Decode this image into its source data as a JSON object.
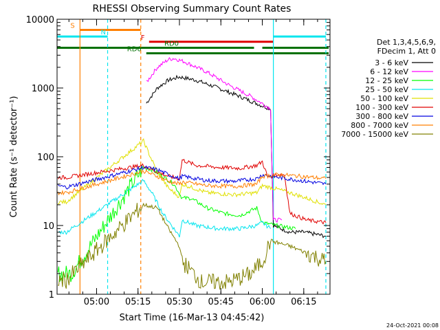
{
  "chart_data": {
    "type": "line",
    "title": "RHESSI Observing Summary Count Rates",
    "xlabel": "Start Time (16-Mar-13 04:45:42)",
    "ylabel": "Count Rate (s⁻¹ detector⁻¹)",
    "y_scale": "log",
    "ylim": [
      1,
      10000
    ],
    "xlim": [
      "04:45:42",
      "06:24:30"
    ],
    "y_ticks": [
      "1",
      "10",
      "100",
      "1000",
      "10000"
    ],
    "x_ticks": [
      "05:00",
      "05:15",
      "05:30",
      "05:45",
      "06:00",
      "06:15"
    ],
    "legend_header": [
      "Det 1,3,4,5,6,9,",
      "FDecim 1, Att 0"
    ],
    "legend_position": "right",
    "footer_date": "24-Oct-2021 00:08",
    "flags": [
      {
        "label": "S",
        "color": "#ff7f00",
        "y": 7000,
        "segments": [
          [
            "04:54:00",
            "05:16:00"
          ]
        ]
      },
      {
        "label": "N",
        "color": "#00e5ee",
        "y": 5600,
        "segments": [
          [
            "04:45:42",
            "05:04:00"
          ],
          [
            "06:04:00",
            "06:23:00"
          ]
        ]
      },
      {
        "label": "F",
        "color": "#e00000",
        "y": 4700,
        "segments": [
          [
            "05:19:00",
            "06:04:00"
          ]
        ]
      },
      {
        "label": "RD0",
        "color": "#007000",
        "y": 3850,
        "segments": [
          [
            "04:45:42",
            "05:31:00"
          ],
          [
            "05:31:00",
            "05:57:00"
          ],
          [
            "06:00:00",
            "06:24:00"
          ]
        ]
      },
      {
        "label": "RD6",
        "color": "#007000",
        "y": 3200,
        "segments": [
          [
            "05:18:00",
            "05:31:00"
          ],
          [
            "05:31:00",
            "06:24:00"
          ]
        ]
      }
    ],
    "vlines": [
      {
        "time": "04:54:00",
        "color": "#ff7f00",
        "style": "solid"
      },
      {
        "time": "05:04:00",
        "color": "#00e5ee",
        "style": "dashed"
      },
      {
        "time": "05:16:00",
        "color": "#ff7f00",
        "style": "dashed"
      },
      {
        "time": "06:04:00",
        "color": "#00e5ee",
        "style": "solid"
      },
      {
        "time": "06:23:00",
        "color": "#00e5ee",
        "style": "dashed"
      }
    ],
    "series": [
      {
        "name": "3 - 6 keV",
        "color": "#000000",
        "points": [
          [
            "05:18",
            600
          ],
          [
            "05:22",
            1000
          ],
          [
            "05:26",
            1300
          ],
          [
            "05:30",
            1450
          ],
          [
            "05:36",
            1300
          ],
          [
            "05:44",
            1000
          ],
          [
            "05:52",
            750
          ],
          [
            "06:00",
            550
          ],
          [
            "06:03",
            500
          ],
          [
            "06:04",
            10
          ],
          [
            "06:10",
            8
          ],
          [
            "06:15",
            8
          ],
          [
            "06:23",
            7
          ]
        ]
      },
      {
        "name": "6 - 12 keV",
        "color": "#ff00ff",
        "points": [
          [
            "05:18",
            1200
          ],
          [
            "05:22",
            2000
          ],
          [
            "05:26",
            2600
          ],
          [
            "05:28",
            2700
          ],
          [
            "05:32",
            2400
          ],
          [
            "05:40",
            1700
          ],
          [
            "05:48",
            1100
          ],
          [
            "05:56",
            750
          ],
          [
            "06:03",
            500
          ],
          [
            "06:04",
            12
          ],
          [
            "06:07",
            12
          ]
        ]
      },
      {
        "name": "12 - 25 keV",
        "color": "#00ff00",
        "points": [
          [
            "04:46",
            2
          ],
          [
            "04:51",
            2
          ],
          [
            "05:17",
            70
          ],
          [
            "05:20",
            65
          ],
          [
            "05:24",
            52
          ],
          [
            "05:28",
            40
          ],
          [
            "05:31",
            25
          ],
          [
            "05:34",
            25
          ],
          [
            "05:40",
            18
          ],
          [
            "05:46",
            15
          ],
          [
            "05:52",
            14
          ],
          [
            "05:58",
            18
          ],
          [
            "06:00",
            11
          ],
          [
            "06:05",
            10
          ],
          [
            "06:12",
            9
          ]
        ]
      },
      {
        "name": "25 - 50 keV",
        "color": "#00e5ee",
        "points": [
          [
            "04:46",
            8
          ],
          [
            "04:49",
            8
          ],
          [
            "05:17",
            45
          ],
          [
            "05:20",
            30
          ],
          [
            "05:24",
            15
          ],
          [
            "05:28",
            9
          ],
          [
            "05:30",
            7
          ],
          [
            "05:31",
            12
          ],
          [
            "05:36",
            10
          ],
          [
            "05:44",
            9
          ],
          [
            "05:52",
            9
          ],
          [
            "05:58",
            10
          ],
          [
            "06:00",
            11
          ],
          [
            "06:03",
            9
          ]
        ]
      },
      {
        "name": "50 - 100 keV",
        "color": "#e0e000",
        "points": [
          [
            "04:46",
            22
          ],
          [
            "04:49",
            22
          ],
          [
            "05:17",
            170
          ],
          [
            "05:19",
            110
          ],
          [
            "05:22",
            60
          ],
          [
            "05:26",
            35
          ],
          [
            "05:30",
            26
          ],
          [
            "05:31",
            40
          ],
          [
            "05:40",
            30
          ],
          [
            "05:50",
            28
          ],
          [
            "05:58",
            30
          ],
          [
            "06:00",
            38
          ],
          [
            "06:04",
            35
          ],
          [
            "06:10",
            30
          ],
          [
            "06:16",
            25
          ],
          [
            "06:23",
            20
          ]
        ]
      },
      {
        "name": "100 - 300 keV",
        "color": "#e00000",
        "points": [
          [
            "04:46",
            50
          ],
          [
            "04:49",
            50
          ],
          [
            "05:17",
            75
          ],
          [
            "05:22",
            60
          ],
          [
            "05:26",
            52
          ],
          [
            "05:30",
            48
          ],
          [
            "05:31",
            90
          ],
          [
            "05:36",
            75
          ],
          [
            "05:44",
            70
          ],
          [
            "05:52",
            68
          ],
          [
            "05:58",
            75
          ],
          [
            "06:00",
            85
          ],
          [
            "06:02",
            50
          ],
          [
            "06:05",
            55
          ],
          [
            "06:08",
            55
          ],
          [
            "06:10",
            15
          ],
          [
            "06:16",
            12
          ],
          [
            "06:23",
            11
          ]
        ]
      },
      {
        "name": "300 - 800 keV",
        "color": "#0000e0",
        "points": [
          [
            "04:46",
            38
          ],
          [
            "04:49",
            36
          ],
          [
            "05:17",
            70
          ],
          [
            "05:22",
            65
          ],
          [
            "05:26",
            55
          ],
          [
            "05:30",
            48
          ],
          [
            "05:31",
            52
          ],
          [
            "05:40",
            45
          ],
          [
            "05:50",
            44
          ],
          [
            "05:58",
            48
          ],
          [
            "06:00",
            55
          ],
          [
            "06:06",
            50
          ],
          [
            "06:14",
            45
          ],
          [
            "06:23",
            40
          ]
        ]
      },
      {
        "name": "800 - 7000 keV",
        "color": "#ff7f00",
        "points": [
          [
            "04:46",
            30
          ],
          [
            "04:49",
            30
          ],
          [
            "05:17",
            62
          ],
          [
            "05:22",
            52
          ],
          [
            "05:26",
            44
          ],
          [
            "05:30",
            40
          ],
          [
            "05:31",
            43
          ],
          [
            "05:40",
            38
          ],
          [
            "05:50",
            37
          ],
          [
            "05:58",
            40
          ],
          [
            "06:00",
            52
          ],
          [
            "06:06",
            55
          ],
          [
            "06:14",
            52
          ],
          [
            "06:23",
            48
          ]
        ]
      },
      {
        "name": "7000 - 15000 keV",
        "color": "#808000",
        "points": [
          [
            "04:46",
            1.6
          ],
          [
            "04:49",
            1.6
          ],
          [
            "05:17",
            20
          ],
          [
            "05:22",
            18
          ],
          [
            "05:26",
            9
          ],
          [
            "05:30",
            5
          ],
          [
            "05:31",
            3
          ],
          [
            "05:38",
            1.5
          ],
          [
            "05:48",
            1.5
          ],
          [
            "05:56",
            2
          ],
          [
            "06:00",
            3
          ],
          [
            "06:03",
            6
          ],
          [
            "06:10",
            5
          ],
          [
            "06:16",
            4
          ],
          [
            "06:23",
            3
          ]
        ]
      }
    ]
  }
}
